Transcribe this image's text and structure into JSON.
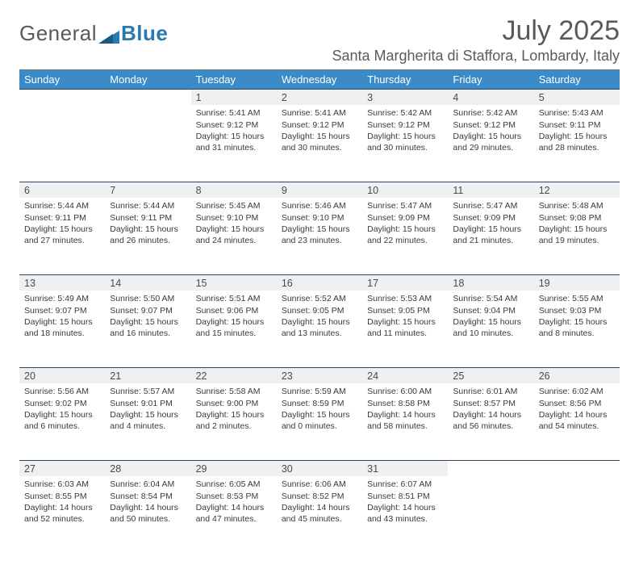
{
  "brand": {
    "part1": "General",
    "part2": "Blue"
  },
  "title": "July 2025",
  "location": "Santa Margherita di Staffora, Lombardy, Italy",
  "colors": {
    "header_bg": "#3b8bc8",
    "header_text": "#ffffff",
    "daynum_bg": "#eef0f2",
    "rule": "#2b4660",
    "text": "#3a3a3a",
    "title": "#5a5a5a"
  },
  "weekdays": [
    "Sunday",
    "Monday",
    "Tuesday",
    "Wednesday",
    "Thursday",
    "Friday",
    "Saturday"
  ],
  "weeks": [
    [
      null,
      null,
      {
        "n": "1",
        "sr": "Sunrise: 5:41 AM",
        "ss": "Sunset: 9:12 PM",
        "d1": "Daylight: 15 hours",
        "d2": "and 31 minutes."
      },
      {
        "n": "2",
        "sr": "Sunrise: 5:41 AM",
        "ss": "Sunset: 9:12 PM",
        "d1": "Daylight: 15 hours",
        "d2": "and 30 minutes."
      },
      {
        "n": "3",
        "sr": "Sunrise: 5:42 AM",
        "ss": "Sunset: 9:12 PM",
        "d1": "Daylight: 15 hours",
        "d2": "and 30 minutes."
      },
      {
        "n": "4",
        "sr": "Sunrise: 5:42 AM",
        "ss": "Sunset: 9:12 PM",
        "d1": "Daylight: 15 hours",
        "d2": "and 29 minutes."
      },
      {
        "n": "5",
        "sr": "Sunrise: 5:43 AM",
        "ss": "Sunset: 9:11 PM",
        "d1": "Daylight: 15 hours",
        "d2": "and 28 minutes."
      }
    ],
    [
      {
        "n": "6",
        "sr": "Sunrise: 5:44 AM",
        "ss": "Sunset: 9:11 PM",
        "d1": "Daylight: 15 hours",
        "d2": "and 27 minutes."
      },
      {
        "n": "7",
        "sr": "Sunrise: 5:44 AM",
        "ss": "Sunset: 9:11 PM",
        "d1": "Daylight: 15 hours",
        "d2": "and 26 minutes."
      },
      {
        "n": "8",
        "sr": "Sunrise: 5:45 AM",
        "ss": "Sunset: 9:10 PM",
        "d1": "Daylight: 15 hours",
        "d2": "and 24 minutes."
      },
      {
        "n": "9",
        "sr": "Sunrise: 5:46 AM",
        "ss": "Sunset: 9:10 PM",
        "d1": "Daylight: 15 hours",
        "d2": "and 23 minutes."
      },
      {
        "n": "10",
        "sr": "Sunrise: 5:47 AM",
        "ss": "Sunset: 9:09 PM",
        "d1": "Daylight: 15 hours",
        "d2": "and 22 minutes."
      },
      {
        "n": "11",
        "sr": "Sunrise: 5:47 AM",
        "ss": "Sunset: 9:09 PM",
        "d1": "Daylight: 15 hours",
        "d2": "and 21 minutes."
      },
      {
        "n": "12",
        "sr": "Sunrise: 5:48 AM",
        "ss": "Sunset: 9:08 PM",
        "d1": "Daylight: 15 hours",
        "d2": "and 19 minutes."
      }
    ],
    [
      {
        "n": "13",
        "sr": "Sunrise: 5:49 AM",
        "ss": "Sunset: 9:07 PM",
        "d1": "Daylight: 15 hours",
        "d2": "and 18 minutes."
      },
      {
        "n": "14",
        "sr": "Sunrise: 5:50 AM",
        "ss": "Sunset: 9:07 PM",
        "d1": "Daylight: 15 hours",
        "d2": "and 16 minutes."
      },
      {
        "n": "15",
        "sr": "Sunrise: 5:51 AM",
        "ss": "Sunset: 9:06 PM",
        "d1": "Daylight: 15 hours",
        "d2": "and 15 minutes."
      },
      {
        "n": "16",
        "sr": "Sunrise: 5:52 AM",
        "ss": "Sunset: 9:05 PM",
        "d1": "Daylight: 15 hours",
        "d2": "and 13 minutes."
      },
      {
        "n": "17",
        "sr": "Sunrise: 5:53 AM",
        "ss": "Sunset: 9:05 PM",
        "d1": "Daylight: 15 hours",
        "d2": "and 11 minutes."
      },
      {
        "n": "18",
        "sr": "Sunrise: 5:54 AM",
        "ss": "Sunset: 9:04 PM",
        "d1": "Daylight: 15 hours",
        "d2": "and 10 minutes."
      },
      {
        "n": "19",
        "sr": "Sunrise: 5:55 AM",
        "ss": "Sunset: 9:03 PM",
        "d1": "Daylight: 15 hours",
        "d2": "and 8 minutes."
      }
    ],
    [
      {
        "n": "20",
        "sr": "Sunrise: 5:56 AM",
        "ss": "Sunset: 9:02 PM",
        "d1": "Daylight: 15 hours",
        "d2": "and 6 minutes."
      },
      {
        "n": "21",
        "sr": "Sunrise: 5:57 AM",
        "ss": "Sunset: 9:01 PM",
        "d1": "Daylight: 15 hours",
        "d2": "and 4 minutes."
      },
      {
        "n": "22",
        "sr": "Sunrise: 5:58 AM",
        "ss": "Sunset: 9:00 PM",
        "d1": "Daylight: 15 hours",
        "d2": "and 2 minutes."
      },
      {
        "n": "23",
        "sr": "Sunrise: 5:59 AM",
        "ss": "Sunset: 8:59 PM",
        "d1": "Daylight: 15 hours",
        "d2": "and 0 minutes."
      },
      {
        "n": "24",
        "sr": "Sunrise: 6:00 AM",
        "ss": "Sunset: 8:58 PM",
        "d1": "Daylight: 14 hours",
        "d2": "and 58 minutes."
      },
      {
        "n": "25",
        "sr": "Sunrise: 6:01 AM",
        "ss": "Sunset: 8:57 PM",
        "d1": "Daylight: 14 hours",
        "d2": "and 56 minutes."
      },
      {
        "n": "26",
        "sr": "Sunrise: 6:02 AM",
        "ss": "Sunset: 8:56 PM",
        "d1": "Daylight: 14 hours",
        "d2": "and 54 minutes."
      }
    ],
    [
      {
        "n": "27",
        "sr": "Sunrise: 6:03 AM",
        "ss": "Sunset: 8:55 PM",
        "d1": "Daylight: 14 hours",
        "d2": "and 52 minutes."
      },
      {
        "n": "28",
        "sr": "Sunrise: 6:04 AM",
        "ss": "Sunset: 8:54 PM",
        "d1": "Daylight: 14 hours",
        "d2": "and 50 minutes."
      },
      {
        "n": "29",
        "sr": "Sunrise: 6:05 AM",
        "ss": "Sunset: 8:53 PM",
        "d1": "Daylight: 14 hours",
        "d2": "and 47 minutes."
      },
      {
        "n": "30",
        "sr": "Sunrise: 6:06 AM",
        "ss": "Sunset: 8:52 PM",
        "d1": "Daylight: 14 hours",
        "d2": "and 45 minutes."
      },
      {
        "n": "31",
        "sr": "Sunrise: 6:07 AM",
        "ss": "Sunset: 8:51 PM",
        "d1": "Daylight: 14 hours",
        "d2": "and 43 minutes."
      },
      null,
      null
    ]
  ]
}
